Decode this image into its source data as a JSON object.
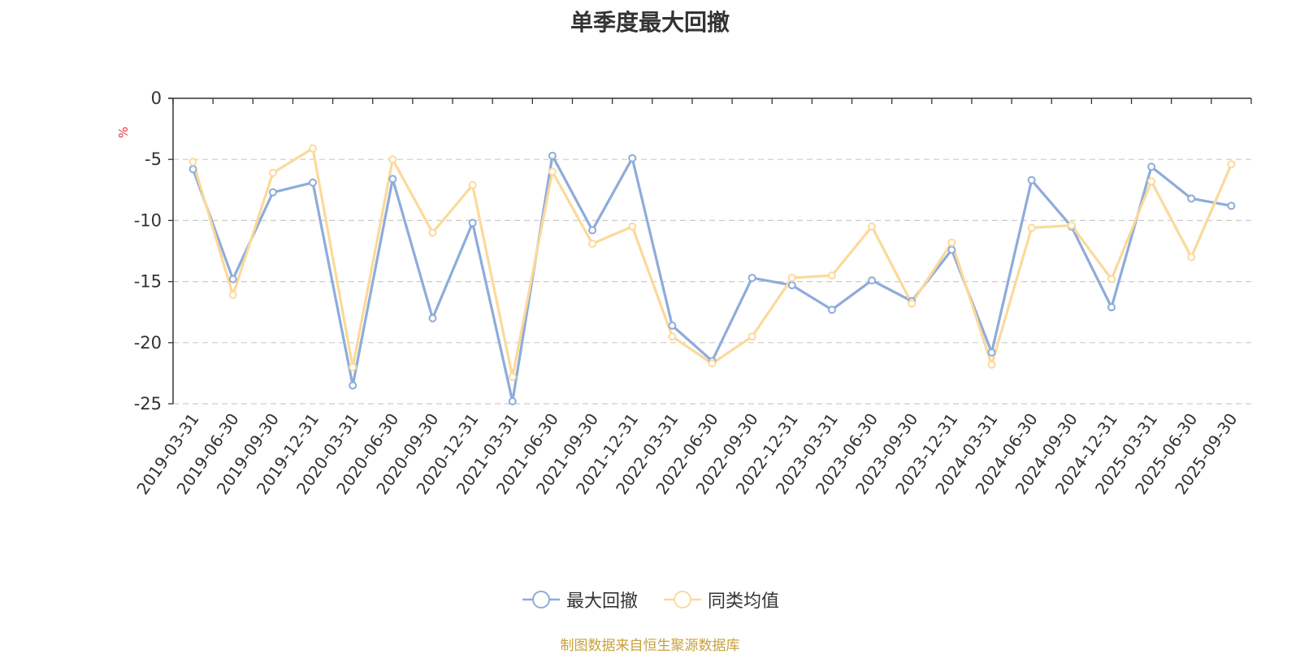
{
  "chart_data": {
    "type": "line",
    "title": "单季度最大回撤",
    "ylabel": "%",
    "ylim": [
      -25,
      0
    ],
    "yticks": [
      0,
      -5,
      -10,
      -15,
      -20,
      -25
    ],
    "grid": true,
    "legend_position": "bottom-center",
    "categories": [
      "2019-03-31",
      "2019-06-30",
      "2019-09-30",
      "2019-12-31",
      "2020-03-31",
      "2020-06-30",
      "2020-09-30",
      "2020-12-31",
      "2021-03-31",
      "2021-06-30",
      "2021-09-30",
      "2021-12-31",
      "2022-03-31",
      "2022-06-30",
      "2022-09-30",
      "2022-12-31",
      "2023-03-31",
      "2023-06-30",
      "2023-09-30",
      "2023-12-31",
      "2024-03-31",
      "2024-06-30",
      "2024-09-30",
      "2024-12-31",
      "2025-03-31",
      "2025-06-30",
      "2025-09-30"
    ],
    "series": [
      {
        "name": "最大回撤",
        "color": "#8eacda",
        "values": [
          -5.8,
          -14.8,
          -7.7,
          -6.9,
          -23.5,
          -6.6,
          -18.0,
          -10.2,
          -24.8,
          -4.7,
          -10.8,
          -4.9,
          -18.6,
          -21.5,
          -14.7,
          -15.3,
          -17.3,
          -14.9,
          -16.6,
          -12.4,
          -20.8,
          -6.7,
          -10.5,
          -17.1,
          -5.6,
          -8.2,
          -8.8
        ]
      },
      {
        "name": "同类均值",
        "color": "#fcd99a",
        "values": [
          -5.2,
          -16.1,
          -6.1,
          -4.1,
          -22.0,
          -5.0,
          -11.0,
          -7.1,
          -22.8,
          -6.0,
          -11.9,
          -10.5,
          -19.5,
          -21.7,
          -19.5,
          -14.7,
          -14.5,
          -10.5,
          -16.8,
          -11.8,
          -21.8,
          -10.6,
          -10.4,
          -14.8,
          -6.8,
          -13.0,
          -5.4
        ]
      }
    ]
  },
  "source_note": "制图数据来自恒生聚源数据库"
}
